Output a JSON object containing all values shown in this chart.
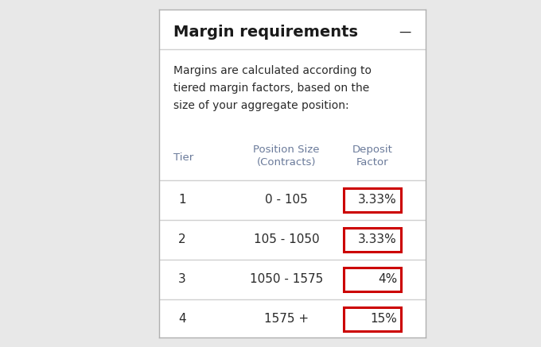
{
  "title": "Margin requirements",
  "dash": "—",
  "subtitle_lines": [
    "Margins are calculated according to",
    "tiered margin factors, based on the",
    "size of your aggregate position:"
  ],
  "col_header_tier": "Tier",
  "col_header_pos_line1": "Position Size",
  "col_header_pos_line2": "(Contracts)",
  "col_header_dep_line1": "Deposit",
  "col_header_dep_line2": "Factor",
  "rows": [
    {
      "tier": "1",
      "position": "0 - 105",
      "deposit": "3.33%"
    },
    {
      "tier": "2",
      "position": "105 - 1050",
      "deposit": "3.33%"
    },
    {
      "tier": "3",
      "position": "1050 - 1575",
      "deposit": "4%"
    },
    {
      "tier": "4",
      "position": "1575 +",
      "deposit": "15%"
    }
  ],
  "outer_bg": "#e8e8e8",
  "card_bg": "#ffffff",
  "card_border_color": "#b0b0b0",
  "title_color": "#1a1a1a",
  "text_color": "#2a2a2a",
  "header_color": "#6a7a9a",
  "red_color": "#cc0000",
  "sep_color": "#d0d0d0",
  "title_fontsize": 14,
  "subtitle_fontsize": 10,
  "header_fontsize": 9.5,
  "data_fontsize": 11,
  "deposit_fontsize": 11
}
